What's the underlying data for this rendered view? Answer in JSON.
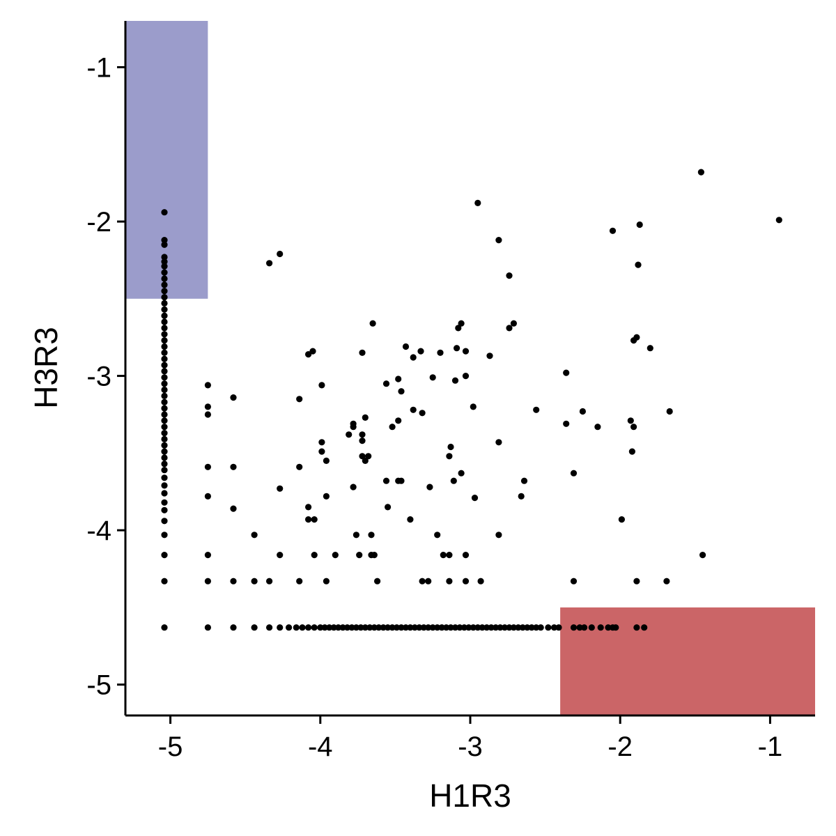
{
  "chart_data": {
    "type": "scatter",
    "xlabel": "H1R3",
    "ylabel": "H3R3",
    "xlim": [
      -5.3,
      -0.7
    ],
    "ylim": [
      -5.2,
      -0.7
    ],
    "xticks": [
      -5,
      -4,
      -3,
      -2,
      -1
    ],
    "yticks": [
      -5,
      -4,
      -3,
      -2,
      -1
    ],
    "xtick_labels": [
      "-5",
      "-4",
      "-3",
      "-2",
      "-1"
    ],
    "ytick_labels": [
      "-5",
      "-4",
      "-3",
      "-2",
      "-1"
    ],
    "grid": false,
    "point_color": "#000000",
    "regions": [
      {
        "x": [
          -5.3,
          -4.75
        ],
        "y": [
          -2.5,
          -0.7
        ],
        "color": "#9b9ccb"
      },
      {
        "x": [
          -2.4,
          -0.7
        ],
        "y": [
          -5.2,
          -4.5
        ],
        "color": "#cb6567"
      }
    ],
    "points": [
      [
        -5.04,
        -1.94
      ],
      [
        -5.04,
        -2.12
      ],
      [
        -5.04,
        -2.15
      ],
      [
        -5.04,
        -2.23
      ],
      [
        -5.04,
        -2.26
      ],
      [
        -5.04,
        -2.29
      ],
      [
        -5.04,
        -2.33
      ],
      [
        -5.04,
        -2.37
      ],
      [
        -5.04,
        -2.41
      ],
      [
        -5.04,
        -2.45
      ],
      [
        -5.04,
        -2.49
      ],
      [
        -5.04,
        -2.53
      ],
      [
        -5.04,
        -2.57
      ],
      [
        -5.04,
        -2.61
      ],
      [
        -5.04,
        -2.65
      ],
      [
        -5.04,
        -2.69
      ],
      [
        -5.04,
        -2.73
      ],
      [
        -5.04,
        -2.77
      ],
      [
        -5.04,
        -2.81
      ],
      [
        -5.04,
        -2.85
      ],
      [
        -5.04,
        -2.89
      ],
      [
        -5.04,
        -2.93
      ],
      [
        -5.04,
        -2.97
      ],
      [
        -5.04,
        -3.01
      ],
      [
        -5.04,
        -3.05
      ],
      [
        -5.04,
        -3.09
      ],
      [
        -5.04,
        -3.13
      ],
      [
        -5.04,
        -3.17
      ],
      [
        -5.04,
        -3.21
      ],
      [
        -5.04,
        -3.25
      ],
      [
        -5.04,
        -3.29
      ],
      [
        -5.04,
        -3.33
      ],
      [
        -5.04,
        -3.37
      ],
      [
        -5.04,
        -3.41
      ],
      [
        -5.04,
        -3.45
      ],
      [
        -5.04,
        -3.49
      ],
      [
        -5.04,
        -3.53
      ],
      [
        -5.04,
        -3.57
      ],
      [
        -5.04,
        -3.61
      ],
      [
        -5.04,
        -3.66
      ],
      [
        -5.04,
        -3.71
      ],
      [
        -5.04,
        -3.76
      ],
      [
        -5.04,
        -3.82
      ],
      [
        -5.04,
        -3.87
      ],
      [
        -5.04,
        -3.94
      ],
      [
        -5.04,
        -4.03
      ],
      [
        -5.04,
        -4.16
      ],
      [
        -5.04,
        -4.33
      ],
      [
        -5.04,
        -4.63
      ],
      [
        -4.75,
        -3.06
      ],
      [
        -4.75,
        -3.2
      ],
      [
        -4.75,
        -3.25
      ],
      [
        -4.75,
        -3.59
      ],
      [
        -4.75,
        -3.78
      ],
      [
        -4.75,
        -4.16
      ],
      [
        -4.75,
        -4.33
      ],
      [
        -4.58,
        -3.14
      ],
      [
        -4.58,
        -3.59
      ],
      [
        -4.58,
        -3.86
      ],
      [
        -4.58,
        -4.33
      ],
      [
        -4.34,
        -2.27
      ],
      [
        -4.27,
        -2.21
      ],
      [
        -4.27,
        -3.73
      ],
      [
        -4.27,
        -4.16
      ],
      [
        -4.44,
        -4.03
      ],
      [
        -4.44,
        -4.33
      ],
      [
        -4.34,
        -4.33
      ],
      [
        -4.14,
        -3.15
      ],
      [
        -4.14,
        -3.59
      ],
      [
        -4.14,
        -4.33
      ],
      [
        -4.08,
        -2.86
      ],
      [
        -4.05,
        -2.84
      ],
      [
        -4.08,
        -3.85
      ],
      [
        -4.08,
        -3.93
      ],
      [
        -4.04,
        -3.93
      ],
      [
        -4.04,
        -4.16
      ],
      [
        -3.99,
        -3.06
      ],
      [
        -3.99,
        -3.43
      ],
      [
        -3.99,
        -3.49
      ],
      [
        -3.96,
        -3.55
      ],
      [
        -3.96,
        -3.78
      ],
      [
        -3.96,
        -4.33
      ],
      [
        -3.9,
        -4.16
      ],
      [
        -3.81,
        -3.38
      ],
      [
        -3.78,
        -3.31
      ],
      [
        -3.78,
        -3.33
      ],
      [
        -3.78,
        -3.72
      ],
      [
        -3.76,
        -4.03
      ],
      [
        -3.74,
        -4.16
      ],
      [
        -3.72,
        -2.85
      ],
      [
        -3.72,
        -3.38
      ],
      [
        -3.72,
        -3.42
      ],
      [
        -3.72,
        -3.52
      ],
      [
        -3.7,
        -3.27
      ],
      [
        -3.7,
        -3.55
      ],
      [
        -3.68,
        -3.52
      ],
      [
        -3.66,
        -4.03
      ],
      [
        -3.66,
        -4.16
      ],
      [
        -3.64,
        -4.16
      ],
      [
        -3.65,
        -2.66
      ],
      [
        -3.62,
        -4.33
      ],
      [
        -3.56,
        -3.05
      ],
      [
        -3.56,
        -3.68
      ],
      [
        -3.55,
        -3.85
      ],
      [
        -3.52,
        -3.33
      ],
      [
        -3.48,
        -3.02
      ],
      [
        -3.48,
        -3.29
      ],
      [
        -3.48,
        -3.68
      ],
      [
        -3.46,
        -3.68
      ],
      [
        -3.46,
        -3.1
      ],
      [
        -3.43,
        -2.81
      ],
      [
        -3.38,
        -2.88
      ],
      [
        -3.38,
        -3.22
      ],
      [
        -3.4,
        -3.93
      ],
      [
        -3.33,
        -2.84
      ],
      [
        -3.32,
        -3.24
      ],
      [
        -3.32,
        -4.33
      ],
      [
        -3.28,
        -4.33
      ],
      [
        -3.27,
        -3.72
      ],
      [
        -3.25,
        -3.01
      ],
      [
        -3.22,
        -4.03
      ],
      [
        -3.18,
        -4.16
      ],
      [
        -3.14,
        -4.16
      ],
      [
        -3.14,
        -4.33
      ],
      [
        -3.2,
        -2.85
      ],
      [
        -3.14,
        -3.52
      ],
      [
        -3.13,
        -3.46
      ],
      [
        -3.11,
        -3.68
      ],
      [
        -3.1,
        -3.03
      ],
      [
        -3.09,
        -2.82
      ],
      [
        -3.08,
        -2.69
      ],
      [
        -3.06,
        -2.66
      ],
      [
        -3.06,
        -3.63
      ],
      [
        -3.03,
        -2.84
      ],
      [
        -3.03,
        -3.0
      ],
      [
        -3.03,
        -4.16
      ],
      [
        -3.03,
        -4.33
      ],
      [
        -2.98,
        -3.2
      ],
      [
        -2.97,
        -3.79
      ],
      [
        -2.95,
        -1.88
      ],
      [
        -2.93,
        -4.33
      ],
      [
        -2.87,
        -2.87
      ],
      [
        -2.81,
        -2.12
      ],
      [
        -2.81,
        -3.43
      ],
      [
        -2.81,
        -4.03
      ],
      [
        -2.74,
        -2.35
      ],
      [
        -2.74,
        -2.69
      ],
      [
        -2.71,
        -2.66
      ],
      [
        -2.64,
        -3.68
      ],
      [
        -2.66,
        -3.78
      ],
      [
        -2.56,
        -3.22
      ],
      [
        -2.36,
        -2.98
      ],
      [
        -2.36,
        -3.31
      ],
      [
        -2.31,
        -3.63
      ],
      [
        -2.31,
        -4.33
      ],
      [
        -2.25,
        -3.23
      ],
      [
        -2.15,
        -3.33
      ],
      [
        -2.05,
        -2.06
      ],
      [
        -1.99,
        -3.93
      ],
      [
        -1.93,
        -3.29
      ],
      [
        -1.91,
        -3.33
      ],
      [
        -1.92,
        -3.49
      ],
      [
        -1.91,
        -2.77
      ],
      [
        -1.89,
        -2.75
      ],
      [
        -1.89,
        -4.33
      ],
      [
        -1.87,
        -2.02
      ],
      [
        -1.88,
        -2.28
      ],
      [
        -1.8,
        -2.82
      ],
      [
        -1.67,
        -3.23
      ],
      [
        -1.69,
        -4.33
      ],
      [
        -1.46,
        -1.68
      ],
      [
        -1.45,
        -4.16
      ],
      [
        -0.94,
        -1.99
      ],
      [
        -4.75,
        -4.63
      ],
      [
        -4.58,
        -4.63
      ],
      [
        -4.44,
        -4.63
      ],
      [
        -4.34,
        -4.63
      ],
      [
        -4.27,
        -4.63
      ],
      [
        -4.21,
        -4.63
      ],
      [
        -4.16,
        -4.63
      ],
      [
        -4.12,
        -4.63
      ],
      [
        -4.08,
        -4.63
      ],
      [
        -4.04,
        -4.63
      ],
      [
        -4.0,
        -4.63
      ],
      [
        -3.97,
        -4.63
      ],
      [
        -3.94,
        -4.63
      ],
      [
        -3.91,
        -4.63
      ],
      [
        -3.88,
        -4.63
      ],
      [
        -3.85,
        -4.63
      ],
      [
        -3.82,
        -4.63
      ],
      [
        -3.79,
        -4.63
      ],
      [
        -3.76,
        -4.63
      ],
      [
        -3.73,
        -4.63
      ],
      [
        -3.7,
        -4.63
      ],
      [
        -3.67,
        -4.63
      ],
      [
        -3.64,
        -4.63
      ],
      [
        -3.61,
        -4.63
      ],
      [
        -3.58,
        -4.63
      ],
      [
        -3.55,
        -4.63
      ],
      [
        -3.52,
        -4.63
      ],
      [
        -3.49,
        -4.63
      ],
      [
        -3.46,
        -4.63
      ],
      [
        -3.43,
        -4.63
      ],
      [
        -3.4,
        -4.63
      ],
      [
        -3.37,
        -4.63
      ],
      [
        -3.34,
        -4.63
      ],
      [
        -3.31,
        -4.63
      ],
      [
        -3.28,
        -4.63
      ],
      [
        -3.25,
        -4.63
      ],
      [
        -3.22,
        -4.63
      ],
      [
        -3.19,
        -4.63
      ],
      [
        -3.16,
        -4.63
      ],
      [
        -3.13,
        -4.63
      ],
      [
        -3.1,
        -4.63
      ],
      [
        -3.07,
        -4.63
      ],
      [
        -3.04,
        -4.63
      ],
      [
        -3.01,
        -4.63
      ],
      [
        -2.98,
        -4.63
      ],
      [
        -2.95,
        -4.63
      ],
      [
        -2.92,
        -4.63
      ],
      [
        -2.89,
        -4.63
      ],
      [
        -2.86,
        -4.63
      ],
      [
        -2.83,
        -4.63
      ],
      [
        -2.8,
        -4.63
      ],
      [
        -2.77,
        -4.63
      ],
      [
        -2.74,
        -4.63
      ],
      [
        -2.71,
        -4.63
      ],
      [
        -2.68,
        -4.63
      ],
      [
        -2.65,
        -4.63
      ],
      [
        -2.62,
        -4.63
      ],
      [
        -2.59,
        -4.63
      ],
      [
        -2.56,
        -4.63
      ],
      [
        -2.53,
        -4.63
      ],
      [
        -2.48,
        -4.63
      ],
      [
        -2.44,
        -4.63
      ],
      [
        -2.41,
        -4.63
      ],
      [
        -2.31,
        -4.63
      ],
      [
        -2.27,
        -4.63
      ],
      [
        -2.24,
        -4.63
      ],
      [
        -2.19,
        -4.63
      ],
      [
        -2.13,
        -4.63
      ],
      [
        -2.08,
        -4.63
      ],
      [
        -2.05,
        -4.63
      ],
      [
        -2.03,
        -4.63
      ],
      [
        -1.89,
        -4.63
      ],
      [
        -1.84,
        -4.63
      ]
    ]
  }
}
